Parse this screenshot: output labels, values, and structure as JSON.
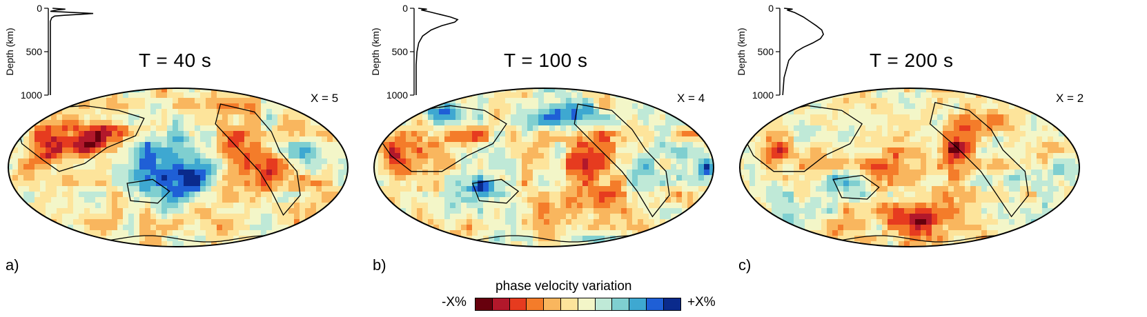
{
  "figure": {
    "legend": {
      "title": "phase velocity variation",
      "left_label": "-X%",
      "right_label": "+X%",
      "colors": [
        "#67000d",
        "#b2182b",
        "#e63b1f",
        "#f47c2a",
        "#f9b65e",
        "#fde49b",
        "#f3f6c8",
        "#bfe9d7",
        "#7fcfd0",
        "#3ea8d1",
        "#1f5fd6",
        "#0a2a8c"
      ]
    },
    "panels": [
      {
        "label": "a)",
        "title": "T = 40 s",
        "x_label": "X = 5",
        "kernel": {
          "axis_title": "Depth (km)",
          "ticks": [
            "0",
            "500",
            "1000"
          ],
          "depth_km": [
            0,
            10,
            20,
            35,
            50,
            60,
            70,
            80,
            90,
            110,
            150,
            200,
            300,
            500,
            800,
            1000
          ],
          "sensitivity": [
            0.05,
            0.35,
            0.15,
            0.0,
            0.6,
            1.0,
            0.7,
            0.35,
            0.1,
            0.03,
            0.0,
            0.0,
            0.0,
            0.0,
            0.0,
            0.0
          ]
        }
      },
      {
        "label": "b)",
        "title": "T = 100 s",
        "x_label": "X = 4",
        "kernel": {
          "axis_title": "Depth (km)",
          "ticks": [
            "0",
            "500",
            "1000"
          ],
          "depth_km": [
            0,
            10,
            20,
            40,
            70,
            100,
            130,
            160,
            200,
            250,
            320,
            400,
            500,
            650,
            800,
            1000
          ],
          "sensitivity": [
            0.05,
            0.25,
            0.12,
            0.3,
            0.55,
            0.8,
            0.97,
            0.9,
            0.6,
            0.35,
            0.15,
            0.06,
            0.02,
            0.0,
            0.0,
            0.0
          ]
        }
      },
      {
        "label": "c)",
        "title": "T = 200 s",
        "x_label": "X = 2",
        "kernel": {
          "axis_title": "Depth (km)",
          "ticks": [
            "0",
            "500",
            "1000"
          ],
          "depth_km": [
            0,
            10,
            20,
            50,
            100,
            150,
            200,
            250,
            300,
            350,
            400,
            450,
            500,
            600,
            800,
            1000
          ],
          "sensitivity": [
            0.05,
            0.25,
            0.12,
            0.3,
            0.5,
            0.65,
            0.8,
            0.93,
            0.97,
            0.9,
            0.72,
            0.5,
            0.33,
            0.16,
            0.05,
            0.02
          ]
        }
      }
    ]
  }
}
